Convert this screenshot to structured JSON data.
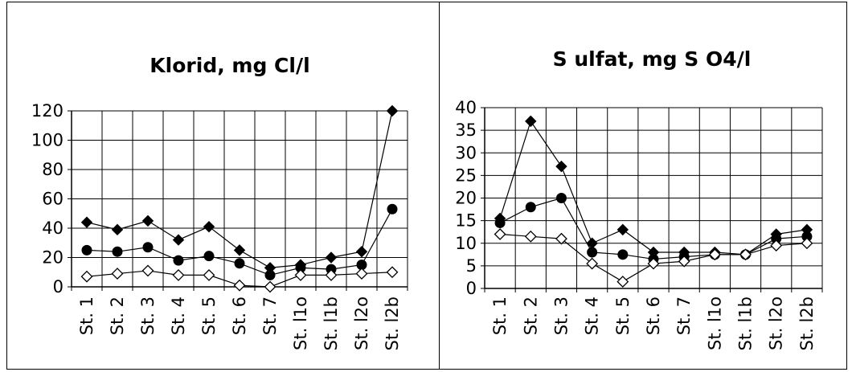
{
  "chart_data": [
    {
      "type": "line",
      "title": "Klorid, mg Cl/l",
      "categories": [
        "St. 1",
        "St. 2",
        "St. 3",
        "St. 4",
        "St. 5",
        "St. 6",
        "St. 7",
        "St. l1o",
        "St. l1b",
        "St. l2o",
        "St. l2b"
      ],
      "ylim": [
        0,
        120
      ],
      "yticks": [
        "0",
        "20",
        "40",
        "60",
        "80",
        "100",
        "120"
      ],
      "grid": true,
      "legend": "none",
      "series": [
        {
          "marker": "diamond-filled",
          "values": [
            44,
            39,
            45,
            32,
            41,
            25,
            13,
            15,
            20,
            24,
            120
          ]
        },
        {
          "marker": "circle-filled",
          "values": [
            25,
            24,
            27,
            18,
            21,
            16,
            8,
            13,
            12,
            15,
            53
          ]
        },
        {
          "marker": "diamond-open",
          "values": [
            7,
            9,
            11,
            8,
            8,
            1,
            0,
            8,
            8,
            9,
            10
          ]
        }
      ]
    },
    {
      "type": "line",
      "title": "S ulfat, mg S O4/l",
      "categories": [
        "St. 1",
        "St. 2",
        "St. 3",
        "St. 4",
        "St. 5",
        "St. 6",
        "St. 7",
        "St. l1o",
        "St. l1b",
        "St. l2o",
        "St. l2b"
      ],
      "ylim": [
        0,
        40
      ],
      "yticks": [
        "0",
        "5",
        "10",
        "15",
        "20",
        "25",
        "30",
        "35",
        "40"
      ],
      "grid": true,
      "legend": "none",
      "series": [
        {
          "marker": "diamond-filled",
          "values": [
            15.5,
            37,
            27,
            10,
            13,
            8,
            8,
            8,
            7.5,
            12,
            13
          ]
        },
        {
          "marker": "circle-filled",
          "values": [
            14.5,
            18,
            20,
            8,
            7.5,
            6.5,
            7,
            7.5,
            7.5,
            11,
            11.5
          ]
        },
        {
          "marker": "diamond-open",
          "values": [
            12,
            11.5,
            11,
            5.5,
            1.5,
            5.5,
            6,
            7.5,
            7.5,
            9.5,
            10
          ]
        }
      ]
    }
  ]
}
